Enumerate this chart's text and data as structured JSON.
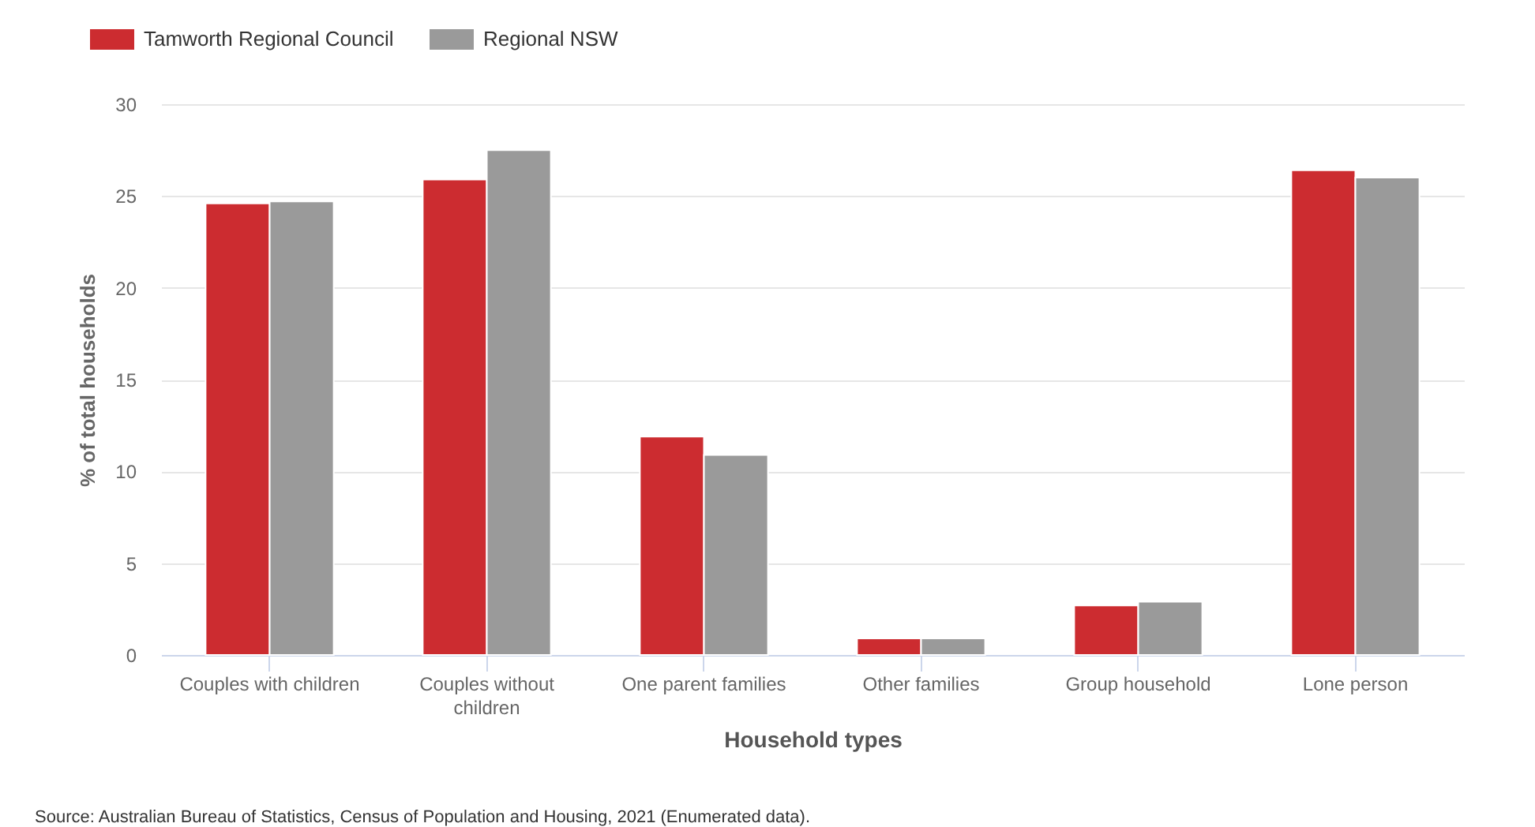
{
  "chart_data": {
    "type": "bar",
    "xlabel": "Household types",
    "ylabel": "% of total households",
    "categories": [
      "Couples with children",
      "Couples without children",
      "One parent families",
      "Other families",
      "Group household",
      "Lone person"
    ],
    "series": [
      {
        "name": "Tamworth Regional Council",
        "color": "#cc2c30",
        "values": [
          24.6,
          25.9,
          11.9,
          0.9,
          2.7,
          26.4
        ]
      },
      {
        "name": "Regional NSW",
        "color": "#9a9a9a",
        "values": [
          24.7,
          27.5,
          10.9,
          0.9,
          2.9,
          26.0
        ]
      }
    ],
    "ylim": [
      0,
      30
    ],
    "yticks": [
      0,
      5,
      10,
      15,
      20,
      25,
      30
    ],
    "grid": "y",
    "legend": "top left",
    "annotations": [
      "Source: Australian Bureau of Statistics, Census of Population and Housing, 2021 (Enumerated data)."
    ]
  }
}
